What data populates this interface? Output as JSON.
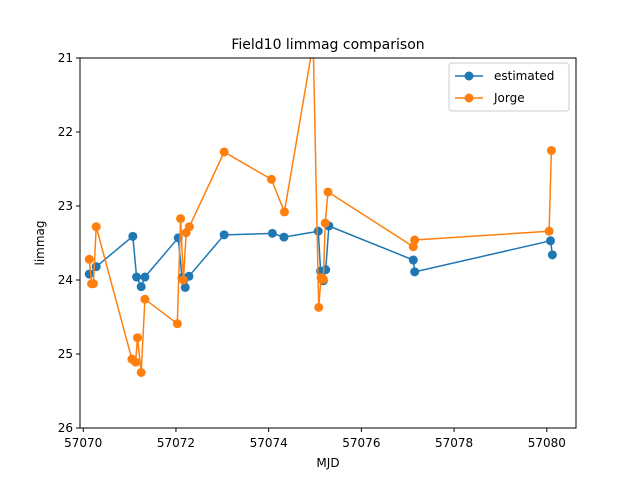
{
  "chart_data": {
    "type": "line",
    "title": "Field10 limmag comparison",
    "xlabel": "MJD",
    "ylabel": "limmag",
    "xlim": [
      69.93,
      80.63
    ],
    "ylim": [
      26,
      21
    ],
    "y_inverted": true,
    "x_tick_values": [
      57070,
      57072,
      57074,
      57076,
      57078,
      57080
    ],
    "x_tick_labels": [
      "57070",
      "57072",
      "57074",
      "57076",
      "57078",
      "57080"
    ],
    "x_offset": 57000,
    "y_ticks": [
      21,
      22,
      23,
      24,
      25,
      26
    ],
    "legend_position": "upper right",
    "grid": false,
    "series": [
      {
        "name": "estimated",
        "color": "#1f77b4",
        "marker": "circle",
        "x": [
          70.13,
          70.28,
          71.07,
          71.15,
          71.25,
          71.33,
          72.05,
          72.13,
          72.2,
          72.28,
          73.04,
          74.08,
          74.33,
          75.07,
          75.12,
          75.18,
          75.23,
          75.3,
          77.12,
          77.15,
          80.08,
          80.12
        ],
        "y": [
          23.92,
          23.82,
          23.41,
          23.96,
          24.09,
          23.96,
          23.43,
          23.97,
          24.1,
          23.95,
          23.39,
          23.37,
          23.42,
          23.34,
          23.88,
          24.01,
          23.86,
          23.27,
          23.73,
          23.89,
          23.47,
          23.66
        ]
      },
      {
        "name": "Jorge",
        "color": "#ff7f0e",
        "marker": "circle",
        "x": [
          70.13,
          70.18,
          70.22,
          70.28,
          71.05,
          71.13,
          71.17,
          71.25,
          71.33,
          72.03,
          72.1,
          72.16,
          72.22,
          72.29,
          73.04,
          74.06,
          74.34,
          74.96,
          75.08,
          75.13,
          75.18,
          75.22,
          75.28,
          77.12,
          77.15,
          80.05,
          80.1
        ],
        "y": [
          23.72,
          24.05,
          24.05,
          23.28,
          25.07,
          25.11,
          24.78,
          25.25,
          24.26,
          24.59,
          23.17,
          24.0,
          23.36,
          23.28,
          22.27,
          22.64,
          23.08,
          20.8,
          24.37,
          23.97,
          23.99,
          23.23,
          22.81,
          23.55,
          23.46,
          23.34,
          22.25
        ]
      }
    ]
  }
}
